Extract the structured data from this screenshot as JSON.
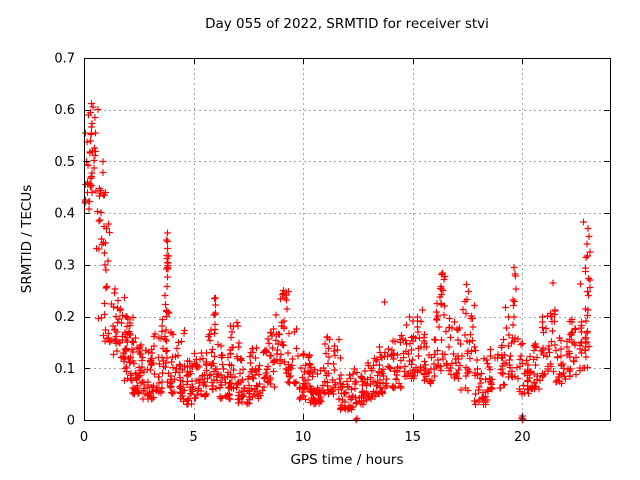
{
  "colors": {
    "background": "#ffffff",
    "marker": "#ff0000",
    "grid": "#a6a6a6",
    "frame": "#000000",
    "text": "#000000"
  },
  "chart_data": {
    "type": "scatter",
    "title": "Day 055 of 2022, SRMTID for receiver stvi",
    "xlabel": "GPS time / hours",
    "ylabel": "SRMTID / TECUs",
    "xlim": [
      0,
      24
    ],
    "ylim": [
      0,
      0.7
    ],
    "grid": true,
    "legend": "none",
    "marker": {
      "shape": "plus",
      "color": "#ff0000",
      "size": 7
    },
    "xticks": [
      {
        "v": 0,
        "label": "0"
      },
      {
        "v": 5,
        "label": "5"
      },
      {
        "v": 10,
        "label": "10"
      },
      {
        "v": 15,
        "label": "15"
      },
      {
        "v": 20,
        "label": "20"
      }
    ],
    "yticks": [
      {
        "v": 0.0,
        "label": "0"
      },
      {
        "v": 0.1,
        "label": "0.1"
      },
      {
        "v": 0.2,
        "label": "0.2"
      },
      {
        "v": 0.3,
        "label": "0.3"
      },
      {
        "v": 0.4,
        "label": "0.4"
      },
      {
        "v": 0.5,
        "label": "0.5"
      },
      {
        "v": 0.6,
        "label": "0.6"
      },
      {
        "v": 0.7,
        "label": "0.7"
      }
    ],
    "notable_points": [
      [
        0.35,
        0.612
      ],
      [
        0.42,
        0.605
      ],
      [
        0.3,
        0.595
      ],
      [
        0.5,
        0.585
      ],
      [
        0.12,
        0.5
      ],
      [
        0.06,
        0.455
      ],
      [
        0.04,
        0.42
      ],
      [
        0.98,
        0.44
      ],
      [
        3.8,
        0.362
      ],
      [
        3.8,
        0.345
      ],
      [
        3.82,
        0.332
      ],
      [
        3.78,
        0.318
      ],
      [
        3.8,
        0.305
      ],
      [
        3.83,
        0.292
      ],
      [
        3.81,
        0.277
      ],
      [
        6.0,
        0.236
      ],
      [
        6.0,
        0.222
      ],
      [
        9.1,
        0.25
      ],
      [
        9.05,
        0.243
      ],
      [
        9.18,
        0.236
      ],
      [
        13.7,
        0.228
      ],
      [
        16.35,
        0.284
      ],
      [
        16.42,
        0.272
      ],
      [
        16.3,
        0.258
      ],
      [
        17.45,
        0.262
      ],
      [
        17.55,
        0.248
      ],
      [
        19.63,
        0.295
      ],
      [
        19.67,
        0.282
      ],
      [
        21.4,
        0.265
      ],
      [
        22.8,
        0.383
      ],
      [
        23.0,
        0.37
      ],
      [
        23.05,
        0.355
      ],
      [
        22.95,
        0.34
      ],
      [
        23.08,
        0.325
      ],
      [
        12.4,
        0.0
      ],
      [
        12.46,
        0.003
      ],
      [
        20.0,
        0.0
      ],
      [
        20.04,
        0.002
      ],
      [
        19.97,
        0.004
      ],
      [
        20.01,
        0.008
      ]
    ],
    "density_bands": [
      [
        0.0,
        0.35,
        0.4,
        0.61,
        14
      ],
      [
        0.25,
        0.7,
        0.44,
        0.61,
        24
      ],
      [
        0.55,
        0.95,
        0.33,
        0.52,
        18
      ],
      [
        0.6,
        1.1,
        0.15,
        0.3,
        8
      ],
      [
        0.9,
        1.2,
        0.25,
        0.4,
        10
      ],
      [
        1.0,
        1.5,
        0.15,
        0.28,
        16
      ],
      [
        1.3,
        2.0,
        0.12,
        0.24,
        30
      ],
      [
        1.8,
        2.3,
        0.07,
        0.2,
        30
      ],
      [
        2.1,
        2.7,
        0.05,
        0.16,
        35
      ],
      [
        2.5,
        3.2,
        0.04,
        0.14,
        40
      ],
      [
        3.0,
        3.6,
        0.05,
        0.17,
        30
      ],
      [
        3.55,
        4.0,
        0.06,
        0.2,
        25
      ],
      [
        3.7,
        3.9,
        0.2,
        0.27,
        8
      ],
      [
        3.74,
        3.86,
        0.29,
        0.36,
        7
      ],
      [
        4.0,
        4.6,
        0.05,
        0.18,
        30
      ],
      [
        4.4,
        5.0,
        0.03,
        0.12,
        35
      ],
      [
        5.0,
        5.6,
        0.04,
        0.13,
        35
      ],
      [
        5.55,
        6.1,
        0.05,
        0.18,
        30
      ],
      [
        5.92,
        6.05,
        0.17,
        0.24,
        6
      ],
      [
        6.1,
        6.7,
        0.04,
        0.15,
        35
      ],
      [
        6.65,
        7.1,
        0.06,
        0.19,
        25
      ],
      [
        7.0,
        7.6,
        0.03,
        0.12,
        35
      ],
      [
        7.55,
        8.2,
        0.04,
        0.14,
        35
      ],
      [
        8.2,
        8.7,
        0.06,
        0.18,
        30
      ],
      [
        8.6,
        9.35,
        0.09,
        0.25,
        35
      ],
      [
        9.3,
        9.8,
        0.07,
        0.18,
        20
      ],
      [
        9.8,
        10.4,
        0.04,
        0.13,
        35
      ],
      [
        10.3,
        11.0,
        0.03,
        0.11,
        40
      ],
      [
        11.0,
        11.7,
        0.05,
        0.17,
        35
      ],
      [
        11.6,
        12.3,
        0.02,
        0.09,
        40
      ],
      [
        12.2,
        12.9,
        0.03,
        0.1,
        35
      ],
      [
        12.9,
        13.5,
        0.04,
        0.12,
        30
      ],
      [
        13.4,
        14.0,
        0.05,
        0.16,
        30
      ],
      [
        14.0,
        14.6,
        0.06,
        0.18,
        30
      ],
      [
        14.5,
        15.1,
        0.08,
        0.2,
        30
      ],
      [
        15.0,
        15.6,
        0.09,
        0.22,
        25
      ],
      [
        15.5,
        16.1,
        0.07,
        0.19,
        25
      ],
      [
        16.0,
        16.6,
        0.09,
        0.24,
        25
      ],
      [
        16.25,
        16.5,
        0.24,
        0.285,
        6
      ],
      [
        16.6,
        17.2,
        0.08,
        0.2,
        30
      ],
      [
        17.15,
        17.9,
        0.05,
        0.24,
        30
      ],
      [
        17.8,
        18.6,
        0.03,
        0.12,
        35
      ],
      [
        18.5,
        19.2,
        0.06,
        0.16,
        30
      ],
      [
        19.2,
        19.8,
        0.08,
        0.22,
        25
      ],
      [
        19.55,
        19.72,
        0.22,
        0.295,
        5
      ],
      [
        19.8,
        20.3,
        0.05,
        0.15,
        20
      ],
      [
        20.2,
        20.9,
        0.06,
        0.16,
        30
      ],
      [
        20.85,
        21.5,
        0.08,
        0.22,
        30
      ],
      [
        21.25,
        21.5,
        0.19,
        0.26,
        6
      ],
      [
        21.5,
        22.2,
        0.07,
        0.17,
        30
      ],
      [
        22.15,
        22.7,
        0.08,
        0.2,
        25
      ],
      [
        22.6,
        23.0,
        0.1,
        0.27,
        20
      ],
      [
        22.85,
        23.1,
        0.14,
        0.38,
        15
      ]
    ]
  }
}
